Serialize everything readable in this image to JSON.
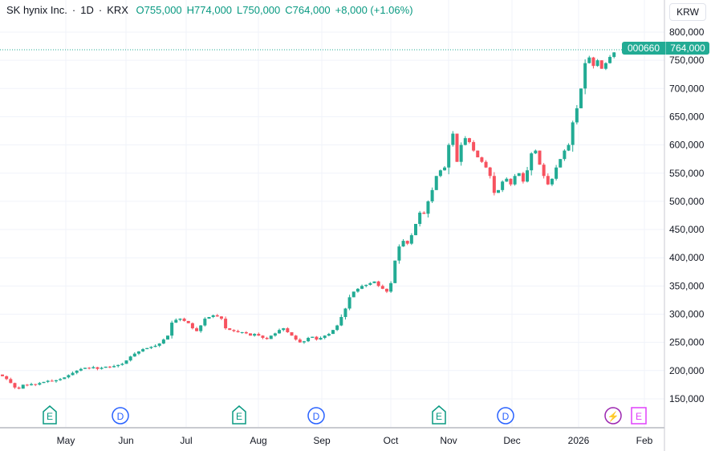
{
  "header": {
    "symbol": "SK hynix Inc.",
    "interval": "1D",
    "exchange": "KRX",
    "open": "O755,000",
    "high": "H774,000",
    "low": "L750,000",
    "close": "C764,000",
    "change": "+8,000 (+1.06%)",
    "separator": "·"
  },
  "currency_button": "KRW",
  "price_label": {
    "symbol": "000660",
    "price": "764,000",
    "price_value": 764000
  },
  "colors": {
    "up": "#22ab94",
    "down": "#f7525f",
    "accent": "#089981"
  },
  "chart_data": {
    "type": "candlestick",
    "ylim": [
      130000,
      815000
    ],
    "y_ticks": [
      "800,000",
      "750,000",
      "700,000",
      "650,000",
      "600,000",
      "550,000",
      "500,000",
      "450,000",
      "400,000",
      "350,000",
      "300,000",
      "250,000",
      "200,000",
      "150,000"
    ],
    "y_tick_values": [
      800000,
      750000,
      700000,
      650000,
      600000,
      550000,
      500000,
      450000,
      400000,
      350000,
      300000,
      250000,
      200000,
      150000
    ],
    "x_ticks": [
      "May",
      "Jun",
      "Jul",
      "Aug",
      "Sep",
      "Oct",
      "Nov",
      "Dec",
      "2026",
      "Feb"
    ],
    "closes": [
      190000,
      185000,
      178000,
      170000,
      168000,
      175000,
      174000,
      176000,
      175000,
      178000,
      180000,
      182000,
      181000,
      183000,
      185000,
      188000,
      192000,
      196000,
      200000,
      203000,
      205000,
      204000,
      206000,
      203000,
      205000,
      207000,
      206000,
      208000,
      210000,
      212000,
      218000,
      225000,
      230000,
      234000,
      238000,
      240000,
      242000,
      244000,
      248000,
      255000,
      262000,
      285000,
      290000,
      292000,
      288000,
      284000,
      275000,
      270000,
      280000,
      292000,
      295000,
      298000,
      296000,
      292000,
      275000,
      272000,
      270000,
      268000,
      268000,
      266000,
      262000,
      265000,
      262000,
      258000,
      256000,
      262000,
      266000,
      272000,
      275000,
      268000,
      262000,
      255000,
      250000,
      252000,
      258000,
      260000,
      255000,
      258000,
      262000,
      265000,
      272000,
      280000,
      295000,
      310000,
      330000,
      340000,
      345000,
      350000,
      352000,
      355000,
      358000,
      350000,
      345000,
      340000,
      355000,
      395000,
      420000,
      430000,
      425000,
      440000,
      460000,
      480000,
      478000,
      500000,
      520000,
      545000,
      555000,
      560000,
      600000,
      620000,
      570000,
      600000,
      612000,
      605000,
      590000,
      578000,
      570000,
      560000,
      545000,
      515000,
      520000,
      535000,
      540000,
      530000,
      545000,
      550000,
      535000,
      555000,
      585000,
      590000,
      565000,
      545000,
      530000,
      540000,
      560000,
      575000,
      590000,
      600000,
      640000,
      665000,
      700000,
      745000,
      755000,
      740000,
      750000,
      735000,
      745000,
      756000,
      764000
    ]
  },
  "events": [
    {
      "type": "earnings",
      "label": "E"
    },
    {
      "type": "dividend",
      "label": "D"
    },
    {
      "type": "earnings",
      "label": "E"
    },
    {
      "type": "dividend",
      "label": "D"
    },
    {
      "type": "earnings",
      "label": "E"
    },
    {
      "type": "dividend",
      "label": "D"
    },
    {
      "type": "news",
      "label": "⚡"
    },
    {
      "type": "earnings-upcoming",
      "label": "E"
    }
  ]
}
